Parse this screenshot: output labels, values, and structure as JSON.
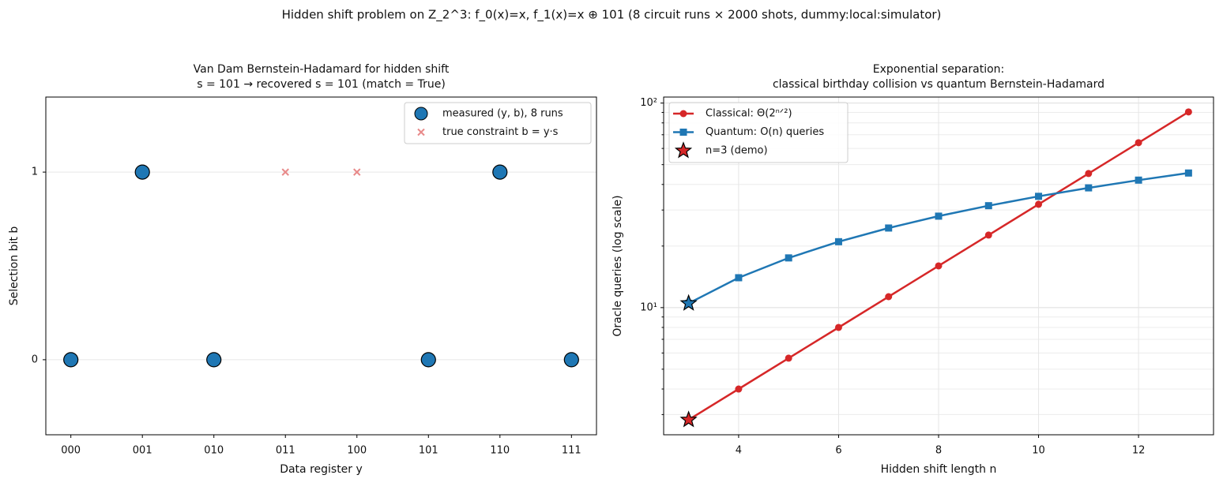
{
  "chart_data": [
    {
      "type": "scatter",
      "title": [
        "Van Dam Bernstein-Hadamard for hidden shift",
        "s = 101  →  recovered s = 101 (match = True)"
      ],
      "suptitle": "Hidden shift problem on Z_2^3:  f_0(x)=x, f_1(x)=x ⊕ 101  (8 circuit runs × 2000 shots, dummy:local:simulator)",
      "xlabel": "Data register y",
      "ylabel": "Selection bit b",
      "categories": [
        "000",
        "001",
        "010",
        "011",
        "100",
        "101",
        "110",
        "111"
      ],
      "series": [
        {
          "name": "measured (y, b), 8 runs",
          "color": "#1f77b4",
          "marker": "o",
          "values": [
            0,
            1,
            0,
            null,
            null,
            0,
            1,
            0
          ]
        },
        {
          "name": "true constraint b = y·s",
          "color": "#e88a8a",
          "marker": "x",
          "values": [
            0,
            1,
            0,
            1,
            1,
            0,
            1,
            0
          ]
        }
      ],
      "ylim": [
        -0.4,
        1.4
      ],
      "yticks": [
        0,
        1
      ],
      "grid": true,
      "legend": "upper right"
    },
    {
      "type": "line",
      "title": [
        "Exponential separation:",
        "classical birthday collision vs quantum Bernstein-Hadamard"
      ],
      "xlabel": "Hidden shift length n",
      "ylabel": "Oracle queries (log scale)",
      "x": [
        3,
        4,
        5,
        6,
        7,
        8,
        9,
        10,
        11,
        12,
        13
      ],
      "series": [
        {
          "name": "Classical: Θ(2ⁿᐟ²)",
          "color": "#d62728",
          "marker": "o",
          "values": [
            2.83,
            4,
            5.66,
            8,
            11.31,
            16,
            22.63,
            32,
            45.25,
            64,
            90.51
          ]
        },
        {
          "name": "Quantum: O(n) queries",
          "color": "#1f77b4",
          "marker": "s",
          "values": [
            10.5,
            14,
            17.5,
            21,
            24.5,
            28,
            31.5,
            35,
            38.5,
            42,
            45.5
          ]
        },
        {
          "name": "n=3 (demo)",
          "color": "#d62728",
          "colors": [
            "#d62728",
            "#1f77b4"
          ],
          "marker": "star",
          "line": false,
          "x": [
            3,
            3
          ],
          "values": [
            2.83,
            10.5
          ]
        }
      ],
      "xlim": [
        2.5,
        13.5
      ],
      "xticks": [
        4,
        6,
        8,
        10,
        12
      ],
      "ylim": [
        2.39,
        107
      ],
      "yscale": "log",
      "yticks": [
        {
          "value": 10,
          "label": "10¹"
        },
        {
          "value": 100,
          "label": "10²"
        }
      ],
      "grid": true,
      "legend": "upper left"
    }
  ]
}
